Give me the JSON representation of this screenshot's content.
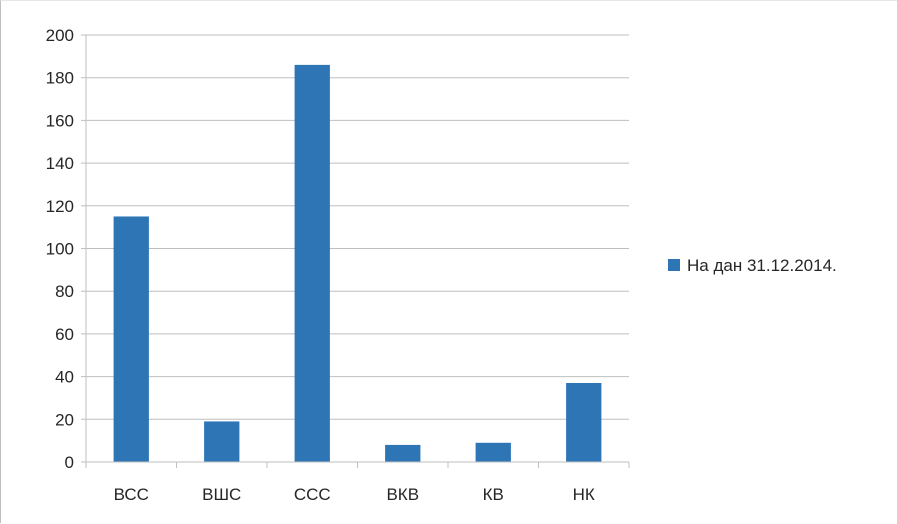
{
  "chart_data": {
    "type": "bar",
    "categories": [
      "ВСС",
      "ВШС",
      "ССС",
      "ВКВ",
      "КВ",
      "НК"
    ],
    "series": [
      {
        "name": "На дан 31.12.2014.",
        "values": [
          115,
          19,
          186,
          8,
          9,
          37
        ],
        "color": "#2E75B6"
      }
    ],
    "title": "",
    "xlabel": "",
    "ylabel": "",
    "ylim": [
      0,
      200
    ],
    "ytick_step": 20,
    "grid": true,
    "legend_position": "right",
    "colors": {
      "grid": "#bfbfbf",
      "axis": "#bfbfbf",
      "text": "#262626",
      "background": "#ffffff"
    }
  }
}
